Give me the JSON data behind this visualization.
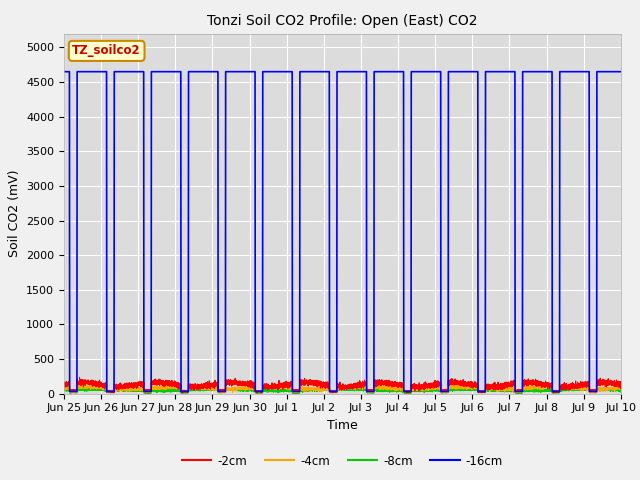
{
  "title": "Tonzi Soil CO2 Profile: Open (East) CO2",
  "ylabel": "Soil CO2 (mV)",
  "xlabel": "Time",
  "ylim": [
    0,
    5200
  ],
  "yticks": [
    0,
    500,
    1000,
    1500,
    2000,
    2500,
    3000,
    3500,
    4000,
    4500,
    5000
  ],
  "fig_bg_color": "#f0f0f0",
  "plot_bg_color": "#dcdcdc",
  "legend_label": "TZ_soilco2",
  "legend_box_facecolor": "#ffffcc",
  "legend_box_edgecolor": "#cc8800",
  "series_colors": {
    "2cm": "#ff0000",
    "4cm": "#ffa500",
    "8cm": "#00cc00",
    "16cm": "#0000ff"
  },
  "xtick_labels": [
    "Jun 25",
    "Jun 26",
    "Jun 27",
    "Jun 28",
    "Jun 29",
    "Jun 30",
    "Jul 1",
    "Jul 2",
    "Jul 3",
    "Jul 4",
    "Jul 5",
    "Jul 6",
    "Jul 7",
    "Jul 8",
    "Jul 9",
    "Jul 10"
  ],
  "spike_high": 4650,
  "spike_low": 30,
  "base_2cm": 130,
  "base_4cm": 80,
  "base_8cm": 50,
  "num_days": 15,
  "title_fontsize": 10,
  "axis_label_fontsize": 9,
  "tick_fontsize": 8
}
